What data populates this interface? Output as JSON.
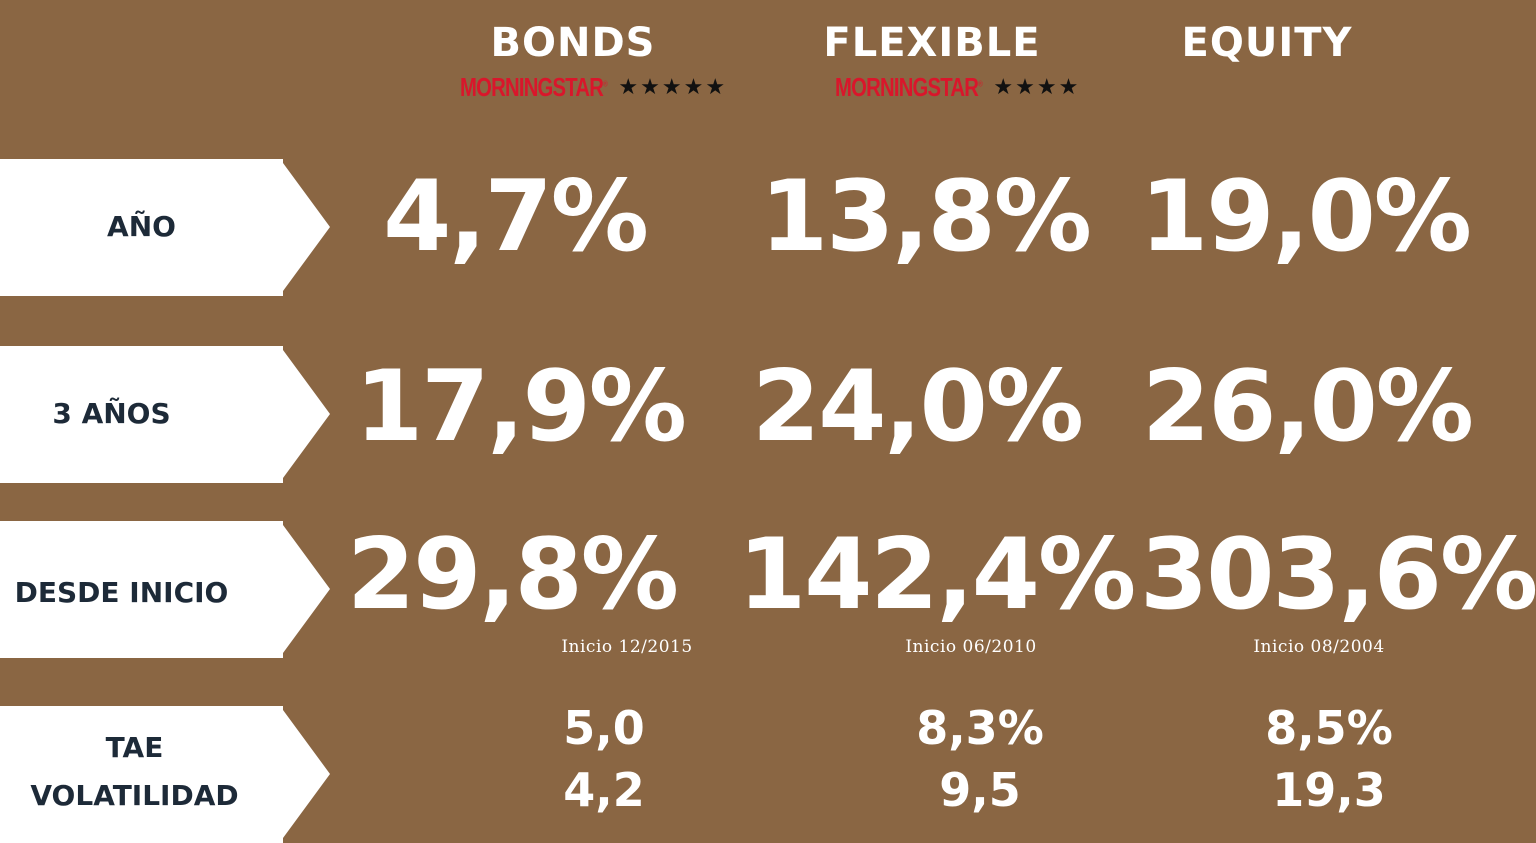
{
  "columns": {
    "bonds": {
      "name": "BONDS",
      "rating_brand": "MORNINGSTAR",
      "rating_stars": "★★★★★",
      "year": "4,7%",
      "three_years": "17,9%",
      "since_inception": "29,8%",
      "inception_note": "Inicio 12/2015",
      "tae": "5,0",
      "volatility": "4,2"
    },
    "flexible": {
      "name": "FLEXIBLE",
      "rating_brand": "MORNINGSTAR",
      "rating_stars": "★★★★",
      "year": "13,8%",
      "three_years": "24,0%",
      "since_inception": "142,4%",
      "inception_note": "Inicio 06/2010",
      "tae": "8,3%",
      "volatility": "9,5"
    },
    "equity": {
      "name": "EQUITY",
      "year": "19,0%",
      "three_years": "26,0%",
      "since_inception": "303,6%",
      "inception_note": "Inicio 08/2004",
      "tae": "8,5%",
      "volatility": "19,3"
    }
  },
  "rows": {
    "year": "AÑO",
    "three_years": "3 AÑOS",
    "since_inception": "DESDE INICIO",
    "tae": "TAE",
    "volatility": "VOLATILIDAD"
  },
  "colors": {
    "background": "#8a6643",
    "tag": "#ffffff",
    "tag_text": "#1d2a38",
    "morningstar_red": "#d9162b"
  }
}
